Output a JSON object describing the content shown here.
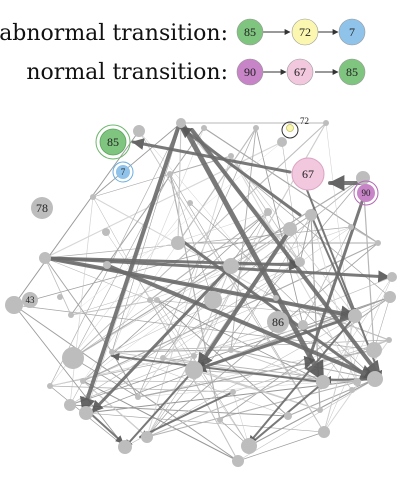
{
  "legend": {
    "abnormal": {
      "label": "abnormal transition:",
      "sequence": [
        {
          "label": "85",
          "color": "#7fc47f"
        },
        {
          "label": "72",
          "color": "#fbf7b0"
        },
        {
          "label": "7",
          "color": "#8fc3ea"
        }
      ]
    },
    "normal": {
      "label": "normal transition:",
      "sequence": [
        {
          "label": "90",
          "color": "#c784c7"
        },
        {
          "label": "67",
          "color": "#f2c8df"
        },
        {
          "label": "85",
          "color": "#7fc47f"
        }
      ]
    }
  },
  "graph": {
    "node_color": "#bdbdbd",
    "edge_color": "#6b6b6b",
    "labels": {
      "n85": "85",
      "n7": "7",
      "n72": "72",
      "n67": "67",
      "n90": "90",
      "n78": "78",
      "n43": "43",
      "n86": "86"
    }
  }
}
